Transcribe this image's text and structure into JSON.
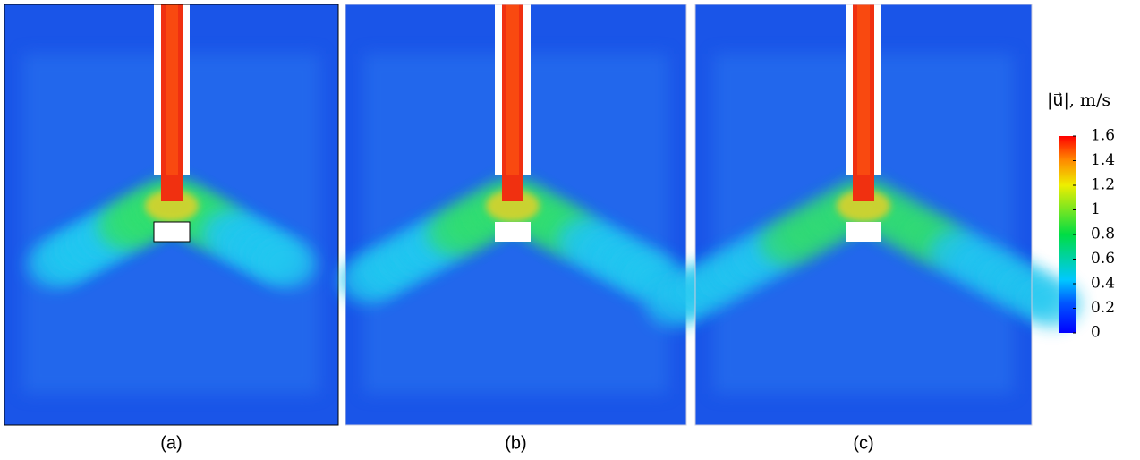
{
  "panels": [
    {
      "label": "(a)"
    },
    {
      "label": "(b)"
    },
    {
      "label": "(c)"
    }
  ],
  "colorbar": {
    "title": "|u⃗|, m/s",
    "lim": [
      0,
      1.6
    ],
    "ticks": [
      0,
      0.2,
      0.4,
      0.6,
      0.8,
      1,
      1.2,
      1.4,
      1.6
    ]
  }
}
